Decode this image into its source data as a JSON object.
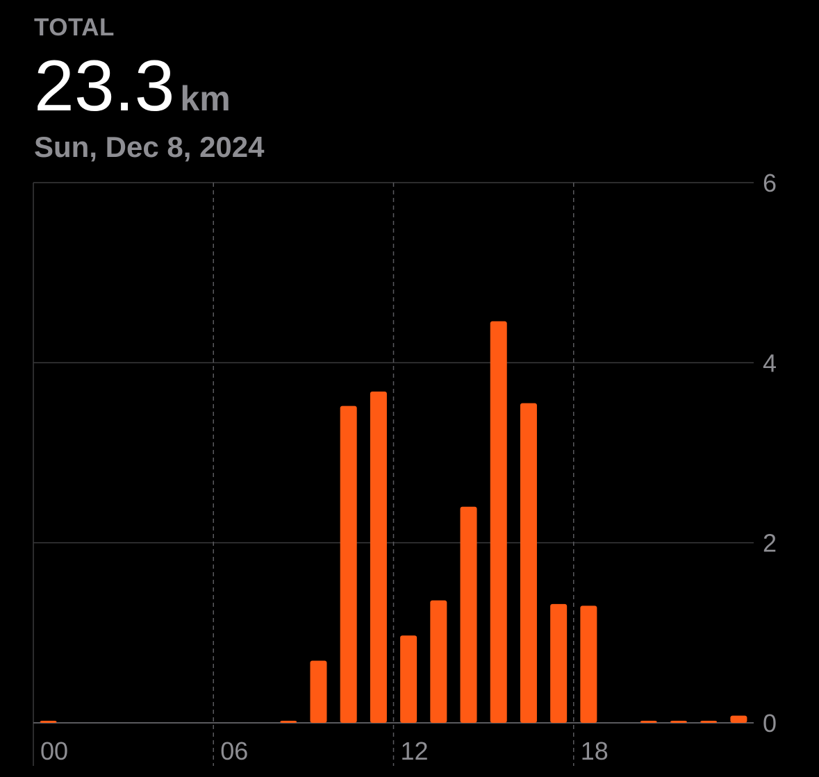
{
  "header": {
    "total_label": "TOTAL",
    "total_value": "23.3",
    "total_unit": "km",
    "date": "Sun, Dec 8, 2024"
  },
  "colors": {
    "background": "#000000",
    "bar": "#ff5a14",
    "text_primary": "#ffffff",
    "text_secondary": "#8e8e93",
    "grid": "#3a3a3c"
  },
  "chart_data": {
    "type": "bar",
    "x_tick_labels": [
      "00",
      "06",
      "12",
      "18"
    ],
    "x_tick_hours": [
      0,
      6,
      12,
      18
    ],
    "y_tick_labels": [
      "0",
      "2",
      "4",
      "6"
    ],
    "y_tick_values": [
      0,
      2,
      4,
      6
    ],
    "ylim": [
      0,
      6
    ],
    "grid": true,
    "categories": [
      0,
      8,
      9,
      10,
      11,
      12,
      13,
      14,
      15,
      16,
      17,
      18,
      20,
      21,
      22,
      23
    ],
    "values": [
      0.02,
      0.01,
      0.69,
      3.52,
      3.68,
      0.97,
      1.36,
      2.4,
      4.46,
      3.55,
      1.32,
      1.3,
      0.01,
      0.02,
      0.01,
      0.08
    ]
  }
}
